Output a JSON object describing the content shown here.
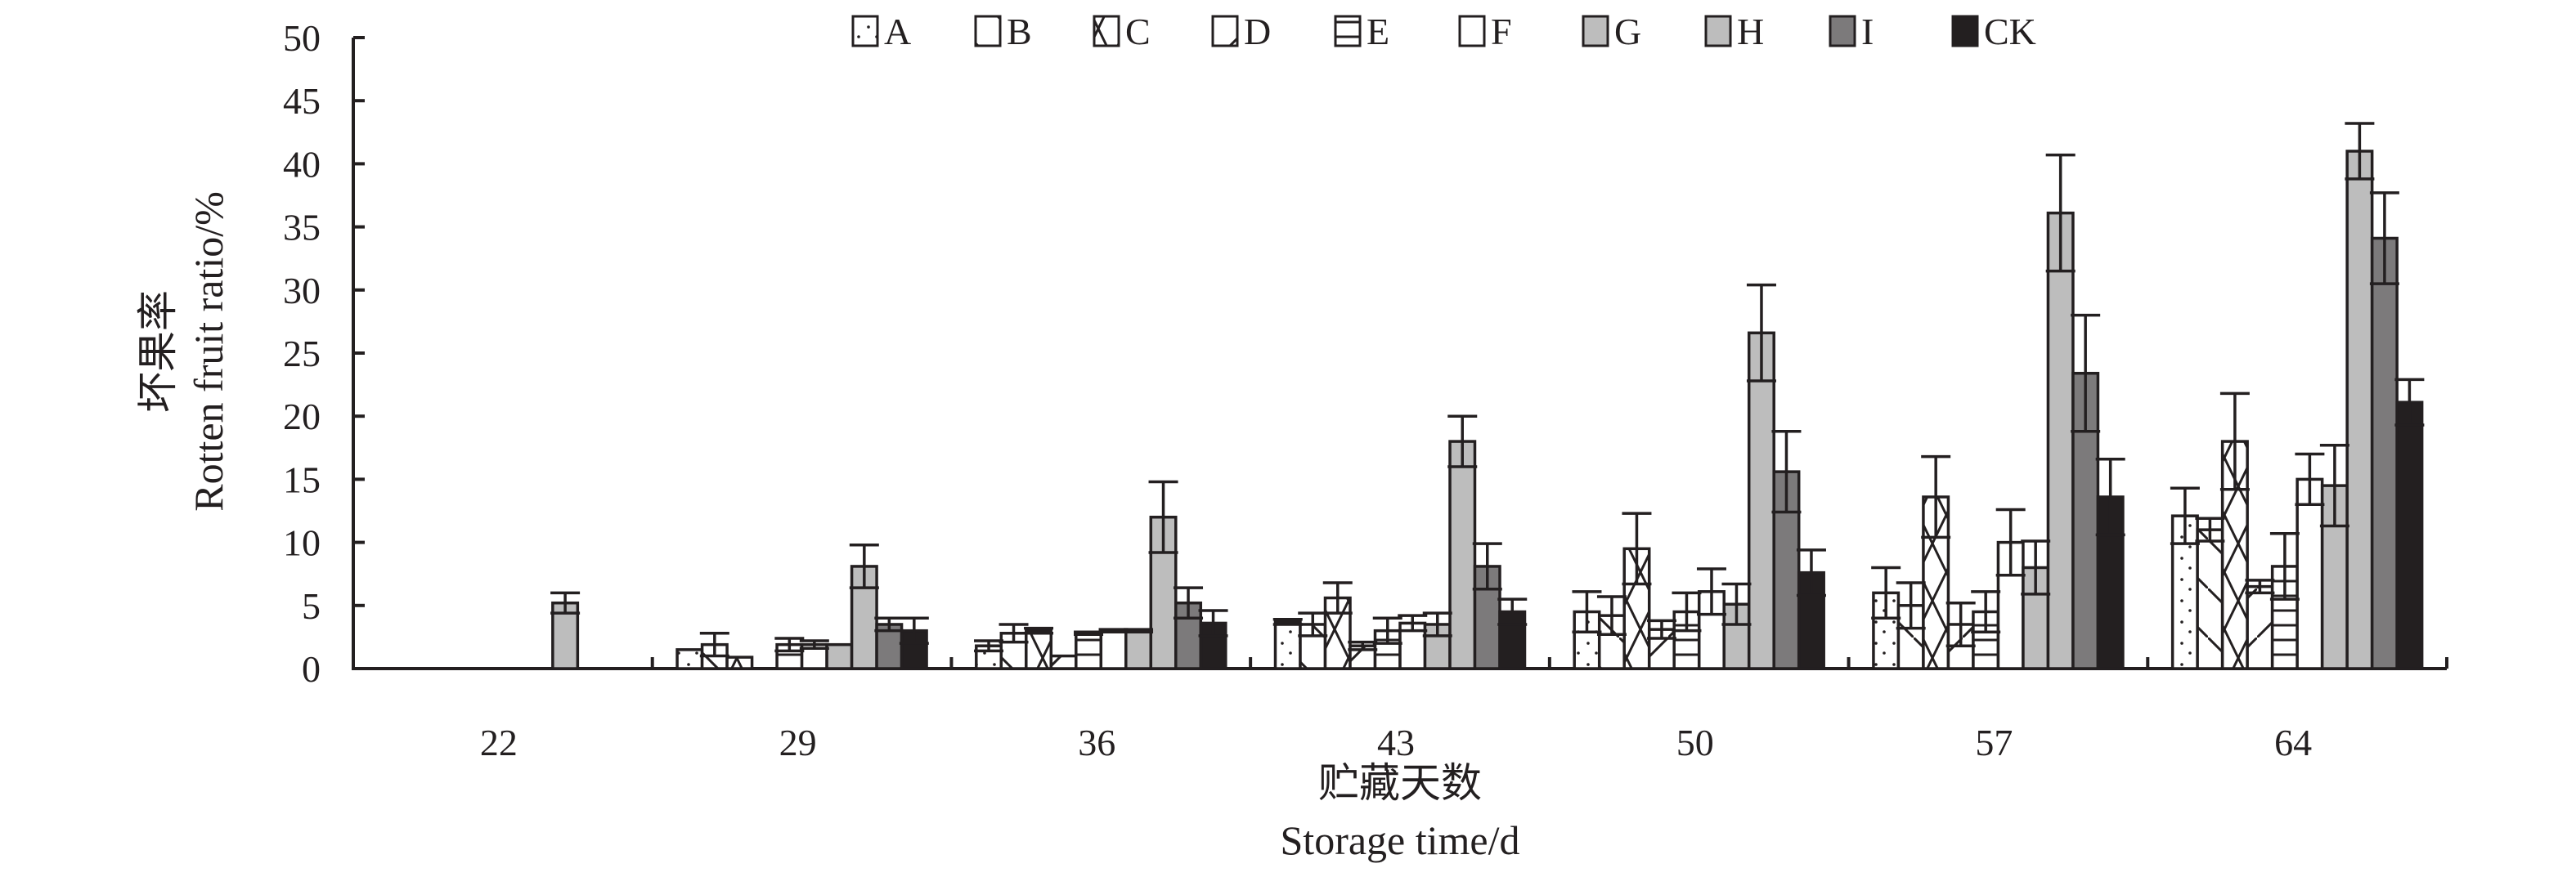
{
  "chart_data": {
    "type": "bar",
    "title": "",
    "xlabel_cn": "贮藏天数",
    "xlabel": "Storage time/d",
    "ylabel_cn": "坏果率",
    "ylabel": "Rotten fruit ratio/%",
    "ylim": [
      0,
      50
    ],
    "yticks": [
      0,
      5,
      10,
      15,
      20,
      25,
      30,
      35,
      40,
      45,
      50
    ],
    "grid": false,
    "legend_position": "top-center",
    "categories": [
      "22",
      "29",
      "36",
      "43",
      "50",
      "57",
      "64"
    ],
    "series": [
      {
        "name": "A",
        "pattern": "dots",
        "color": "#ffffff",
        "values": [
          0,
          1.5,
          1.8,
          3.7,
          4.5,
          6.0,
          12.1
        ],
        "errors": [
          0,
          0,
          0.4,
          0.2,
          1.6,
          2.0,
          2.2
        ]
      },
      {
        "name": "B",
        "pattern": "backslash",
        "color": "#ffffff",
        "values": [
          0,
          1.9,
          2.8,
          3.5,
          4.2,
          5.0,
          11.0
        ],
        "errors": [
          0,
          0.9,
          0.7,
          0.9,
          1.5,
          1.8,
          0.9
        ]
      },
      {
        "name": "C",
        "pattern": "cross",
        "color": "#ffffff",
        "values": [
          0,
          0.9,
          3.0,
          5.6,
          9.5,
          13.6,
          18.0
        ],
        "errors": [
          0,
          0,
          0.2,
          1.2,
          2.8,
          3.2,
          3.8
        ]
      },
      {
        "name": "D",
        "pattern": "slash",
        "color": "#ffffff",
        "values": [
          0,
          0,
          1.0,
          1.8,
          3.1,
          3.5,
          6.5
        ],
        "errors": [
          0,
          0,
          0,
          0.3,
          0.7,
          1.7,
          0.5
        ]
      },
      {
        "name": "E",
        "pattern": "hlines",
        "color": "#ffffff",
        "values": [
          0,
          1.9,
          2.8,
          3.0,
          4.5,
          4.5,
          8.1
        ],
        "errors": [
          0,
          0.5,
          0.1,
          1.0,
          1.5,
          1.6,
          2.6
        ]
      },
      {
        "name": "F",
        "pattern": "none",
        "color": "#ffffff",
        "values": [
          0,
          1.9,
          3.0,
          3.6,
          6.1,
          10.0,
          15.0
        ],
        "errors": [
          0,
          0.3,
          0.1,
          0.6,
          1.8,
          2.6,
          2.0
        ]
      },
      {
        "name": "G",
        "pattern": "none",
        "color": "#bdbdbd",
        "values": [
          0,
          1.9,
          3.0,
          3.5,
          5.1,
          8.0,
          14.5
        ],
        "errors": [
          0,
          0,
          0.1,
          0.9,
          1.6,
          2.1,
          3.2
        ]
      },
      {
        "name": "H",
        "pattern": "none",
        "color": "#bdbdbd",
        "values": [
          5.2,
          8.1,
          12.0,
          18.0,
          26.6,
          36.1,
          41.0
        ],
        "errors": [
          0.8,
          1.7,
          2.8,
          2.0,
          3.8,
          4.6,
          2.2
        ]
      },
      {
        "name": "I",
        "pattern": "none",
        "color": "#7c7a7b",
        "values": [
          0,
          3.5,
          5.2,
          8.1,
          15.6,
          23.4,
          34.1
        ],
        "errors": [
          0,
          0.5,
          1.2,
          1.8,
          3.2,
          4.6,
          3.6
        ]
      },
      {
        "name": "CK",
        "pattern": "none",
        "color": "#231f20",
        "values": [
          0,
          3.0,
          3.6,
          4.5,
          7.6,
          13.6,
          21.1
        ],
        "errors": [
          0,
          1.0,
          1.0,
          1.0,
          1.8,
          3.0,
          1.8
        ]
      }
    ]
  }
}
